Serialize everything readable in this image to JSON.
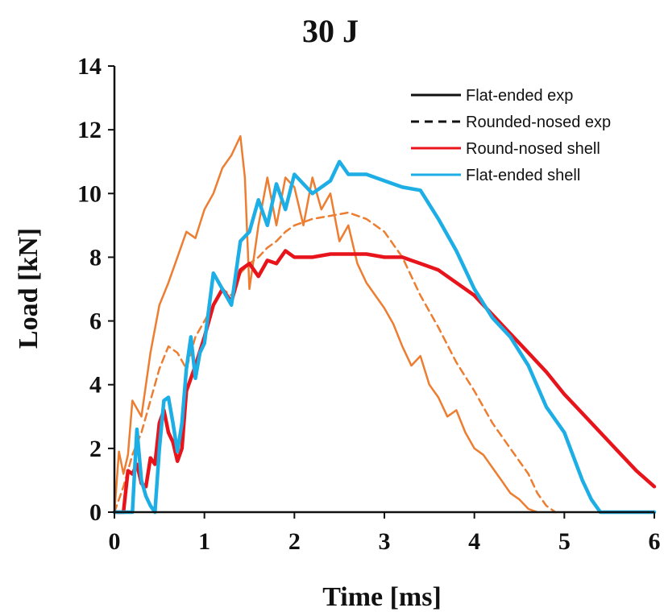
{
  "chart_data": {
    "type": "line",
    "title": "30 J",
    "xlabel": "Time [ms]",
    "ylabel": "Load [kN]",
    "xlim": [
      0,
      6
    ],
    "ylim": [
      0,
      14
    ],
    "xticks": [
      0,
      1,
      2,
      3,
      4,
      5,
      6
    ],
    "yticks": [
      0,
      2,
      4,
      6,
      8,
      10,
      12,
      14
    ],
    "grid": false,
    "legend_position": "top-right",
    "colors": {
      "axis": "#111111",
      "flat_exp": "#ed7d31",
      "round_exp": "#ed7d31",
      "round_shell": "#e8141c",
      "flat_shell": "#1eaee6",
      "legend_exp_line": "#111111"
    },
    "series": [
      {
        "name": "Flat-ended exp",
        "style": "solid",
        "x": [
          0.0,
          0.05,
          0.1,
          0.15,
          0.2,
          0.3,
          0.4,
          0.5,
          0.6,
          0.7,
          0.8,
          0.9,
          1.0,
          1.1,
          1.2,
          1.3,
          1.4,
          1.45,
          1.5,
          1.6,
          1.7,
          1.8,
          1.9,
          2.0,
          2.1,
          2.2,
          2.3,
          2.4,
          2.5,
          2.6,
          2.7,
          2.8,
          2.9,
          3.0,
          3.1,
          3.2,
          3.3,
          3.4,
          3.5,
          3.6,
          3.7,
          3.8,
          3.9,
          4.0,
          4.1,
          4.2,
          4.3,
          4.4,
          4.5,
          4.6,
          4.7
        ],
        "y": [
          0.0,
          1.9,
          1.2,
          1.8,
          3.5,
          3.0,
          5.0,
          6.5,
          7.2,
          8.0,
          8.8,
          8.6,
          9.5,
          10.0,
          10.8,
          11.2,
          11.8,
          10.5,
          7.0,
          9.0,
          10.5,
          9.0,
          10.5,
          10.2,
          9.0,
          10.5,
          9.5,
          10.0,
          8.5,
          9.0,
          7.8,
          7.2,
          6.8,
          6.4,
          5.9,
          5.2,
          4.6,
          4.9,
          4.0,
          3.6,
          3.0,
          3.2,
          2.5,
          2.0,
          1.8,
          1.4,
          1.0,
          0.6,
          0.4,
          0.1,
          0.0
        ]
      },
      {
        "name": "Rounded-nosed exp",
        "style": "dashed",
        "x": [
          0.0,
          0.1,
          0.2,
          0.3,
          0.4,
          0.5,
          0.6,
          0.7,
          0.8,
          0.9,
          1.0,
          1.1,
          1.2,
          1.3,
          1.4,
          1.5,
          1.6,
          1.7,
          1.8,
          1.9,
          2.0,
          2.2,
          2.4,
          2.6,
          2.8,
          3.0,
          3.2,
          3.4,
          3.6,
          3.8,
          4.0,
          4.2,
          4.4,
          4.6,
          4.7,
          4.8,
          4.9
        ],
        "y": [
          0.0,
          0.8,
          1.8,
          2.5,
          3.5,
          4.5,
          5.2,
          5.0,
          4.5,
          5.5,
          6.0,
          6.5,
          7.0,
          6.8,
          7.5,
          7.8,
          8.0,
          8.3,
          8.5,
          8.8,
          9.0,
          9.2,
          9.3,
          9.4,
          9.2,
          8.8,
          8.0,
          6.8,
          5.8,
          4.7,
          3.8,
          2.8,
          2.0,
          1.2,
          0.6,
          0.2,
          0.0
        ]
      },
      {
        "name": "Round-nosed shell",
        "style": "solid",
        "x": [
          0.0,
          0.1,
          0.15,
          0.2,
          0.25,
          0.3,
          0.35,
          0.4,
          0.45,
          0.5,
          0.55,
          0.6,
          0.65,
          0.7,
          0.75,
          0.8,
          0.9,
          1.0,
          1.1,
          1.2,
          1.3,
          1.4,
          1.5,
          1.6,
          1.7,
          1.8,
          1.9,
          2.0,
          2.2,
          2.4,
          2.6,
          2.8,
          3.0,
          3.2,
          3.4,
          3.6,
          3.8,
          4.0,
          4.2,
          4.4,
          4.6,
          4.8,
          5.0,
          5.2,
          5.4,
          5.6,
          5.8,
          6.0
        ],
        "y": [
          0.0,
          0.0,
          1.3,
          1.2,
          1.5,
          0.9,
          0.8,
          1.7,
          1.5,
          2.8,
          3.2,
          2.5,
          2.2,
          1.6,
          2.0,
          3.8,
          4.6,
          5.5,
          6.5,
          7.0,
          6.6,
          7.6,
          7.8,
          7.4,
          7.9,
          7.8,
          8.2,
          8.0,
          8.0,
          8.1,
          8.1,
          8.1,
          8.0,
          8.0,
          7.8,
          7.6,
          7.2,
          6.8,
          6.2,
          5.6,
          5.0,
          4.4,
          3.7,
          3.1,
          2.5,
          1.9,
          1.3,
          0.8
        ]
      },
      {
        "name": "Flat-ended shell",
        "style": "solid",
        "x": [
          0.0,
          0.2,
          0.25,
          0.3,
          0.35,
          0.4,
          0.45,
          0.5,
          0.55,
          0.6,
          0.65,
          0.7,
          0.75,
          0.8,
          0.85,
          0.9,
          0.95,
          1.0,
          1.1,
          1.2,
          1.3,
          1.4,
          1.5,
          1.6,
          1.7,
          1.8,
          1.9,
          2.0,
          2.2,
          2.4,
          2.5,
          2.6,
          2.8,
          3.0,
          3.2,
          3.4,
          3.6,
          3.8,
          4.0,
          4.2,
          4.4,
          4.6,
          4.8,
          5.0,
          5.2,
          5.3,
          5.4,
          5.5,
          6.0
        ],
        "y": [
          0.0,
          0.0,
          2.6,
          1.0,
          0.5,
          0.2,
          0.0,
          2.0,
          3.5,
          3.6,
          2.8,
          1.9,
          2.8,
          4.5,
          5.5,
          4.2,
          5.0,
          5.3,
          7.5,
          7.0,
          6.5,
          8.5,
          8.8,
          9.8,
          9.0,
          10.3,
          9.5,
          10.6,
          10.0,
          10.4,
          11.0,
          10.6,
          10.6,
          10.4,
          10.2,
          10.1,
          9.2,
          8.2,
          7.0,
          6.1,
          5.5,
          4.6,
          3.3,
          2.5,
          1.0,
          0.4,
          0.0,
          0.0,
          0.0
        ]
      }
    ]
  }
}
